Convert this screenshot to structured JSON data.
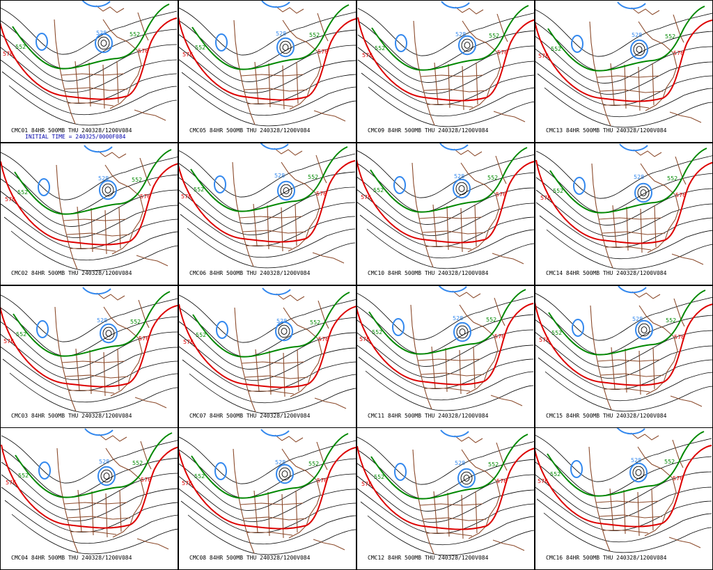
{
  "product": {
    "forecast_hour": "84HR",
    "level": "500MB",
    "valid_label": "THU 240328/1200V084",
    "initial_time": "INITIAL TIME = 240325/0000F084"
  },
  "colors": {
    "background": "#ffffff",
    "border": "#000000",
    "contours": "#000000",
    "contour_576": "#dd0000",
    "contour_552": "#008800",
    "contour_528_low": "#3388ee",
    "coastlines": "#8b4a2b"
  },
  "contour_labels": {
    "red": "576",
    "green": "552",
    "blue": "528"
  },
  "panels": [
    {
      "id": "CMC01",
      "caption": "CMC01 84HR 500MB THU 240328/1200V084",
      "show_initial_time": true
    },
    {
      "id": "CMC05",
      "caption": "CMC05 84HR 500MB THU 240328/1200V084"
    },
    {
      "id": "CMC09",
      "caption": "CMC09 84HR 500MB THU 240328/1200V084"
    },
    {
      "id": "CMC13",
      "caption": "CMC13 84HR 500MB THU 240328/1200V084"
    },
    {
      "id": "CMC02",
      "caption": "CMC02 84HR 500MB THU 240328/1200V084"
    },
    {
      "id": "CMC06",
      "caption": "CMC06 84HR 500MB THU 240328/1200V084"
    },
    {
      "id": "CMC10",
      "caption": "CMC10 84HR 500MB THU 240328/1200V084"
    },
    {
      "id": "CMC14",
      "caption": "CMC14 84HR 500MB THU 240328/1200V084"
    },
    {
      "id": "CMC03",
      "caption": "CMC03 84HR 500MB THU 240328/1200V084"
    },
    {
      "id": "CMC07",
      "caption": "CMC07 84HR 500MB THU 240328/1200V084"
    },
    {
      "id": "CMC11",
      "caption": "CMC11 84HR 500MB THU 240328/1200V084"
    },
    {
      "id": "CMC15",
      "caption": "CMC15 84HR 500MB THU 240328/1200V084"
    },
    {
      "id": "CMC04",
      "caption": "CMC04 84HR 500MB THU 240328/1200V084"
    },
    {
      "id": "CMC08",
      "caption": "CMC08 84HR 500MB THU 240328/1200V084"
    },
    {
      "id": "CMC12",
      "caption": "CMC12 84HR 500MB THU 240328/1200V084"
    },
    {
      "id": "CMC16",
      "caption": "CMC16 84HR 500MB THU 240328/1200V084"
    }
  ]
}
